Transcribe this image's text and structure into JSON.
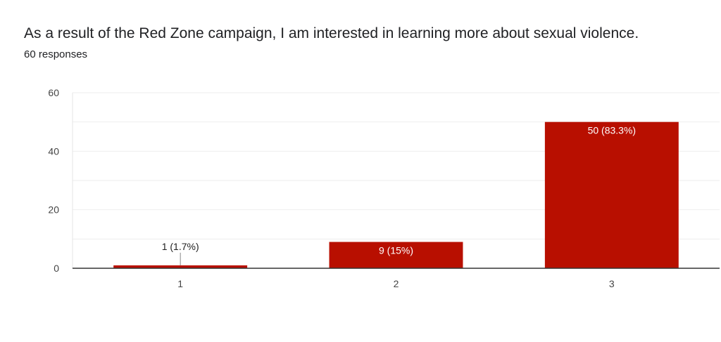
{
  "header": {
    "title": "As a result of the Red Zone campaign, I am interested in learning more about sexual violence.",
    "subtitle": "60 responses"
  },
  "chart_data": {
    "type": "bar",
    "title": "As a result of the Red Zone campaign, I am interested in learning more about sexual violence.",
    "subtitle": "60 responses",
    "categories": [
      "1",
      "2",
      "3"
    ],
    "values": [
      1,
      9,
      50
    ],
    "data_labels": [
      "1 (1.7%)",
      "9 (15%)",
      "50 (83.3%)"
    ],
    "ylim": [
      0,
      60
    ],
    "yticks": [
      0,
      20,
      40,
      60
    ],
    "grid": true,
    "legend": "none",
    "bar_color": "#b80f00"
  }
}
